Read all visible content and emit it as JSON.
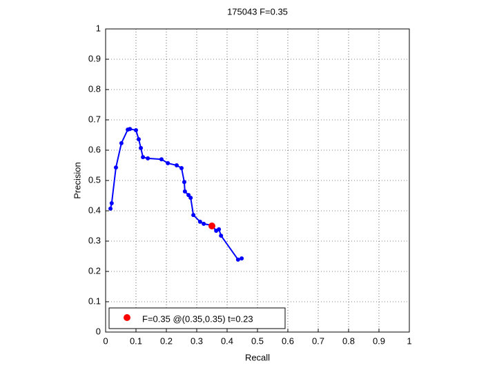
{
  "chart_data": {
    "type": "line",
    "title": "175043 F=0.35",
    "x_label": "Recall",
    "y_label": "Precision",
    "xlim": [
      0,
      1
    ],
    "ylim": [
      0,
      1
    ],
    "xticks": [
      0,
      0.1,
      0.2,
      0.3,
      0.4,
      0.5,
      0.6,
      0.7,
      0.8,
      0.9,
      1
    ],
    "yticks": [
      0,
      0.1,
      0.2,
      0.3,
      0.4,
      0.5,
      0.6,
      0.7,
      0.8,
      0.9,
      1
    ],
    "grid": true,
    "legend_position": "lower left",
    "series": [
      {
        "color": "#0000ff",
        "x": [
          0.016,
          0.02,
          0.034,
          0.052,
          0.073,
          0.08,
          0.1,
          0.109,
          0.116,
          0.123,
          0.139,
          0.184,
          0.205,
          0.234,
          0.25,
          0.259,
          0.261,
          0.273,
          0.28,
          0.289,
          0.311,
          0.323,
          0.35,
          0.364,
          0.373,
          0.38,
          0.436,
          0.448
        ],
        "values": [
          0.407,
          0.425,
          0.543,
          0.623,
          0.668,
          0.67,
          0.666,
          0.636,
          0.607,
          0.577,
          0.573,
          0.57,
          0.557,
          0.55,
          0.541,
          0.495,
          0.464,
          0.452,
          0.443,
          0.386,
          0.364,
          0.357,
          0.352,
          0.334,
          0.339,
          0.318,
          0.239,
          0.243
        ]
      },
      {
        "name": "F=0.35 @(0.35,0.35) t=0.23",
        "color": "#ff0000",
        "x": [
          0.35
        ],
        "values": [
          0.35
        ]
      }
    ]
  }
}
